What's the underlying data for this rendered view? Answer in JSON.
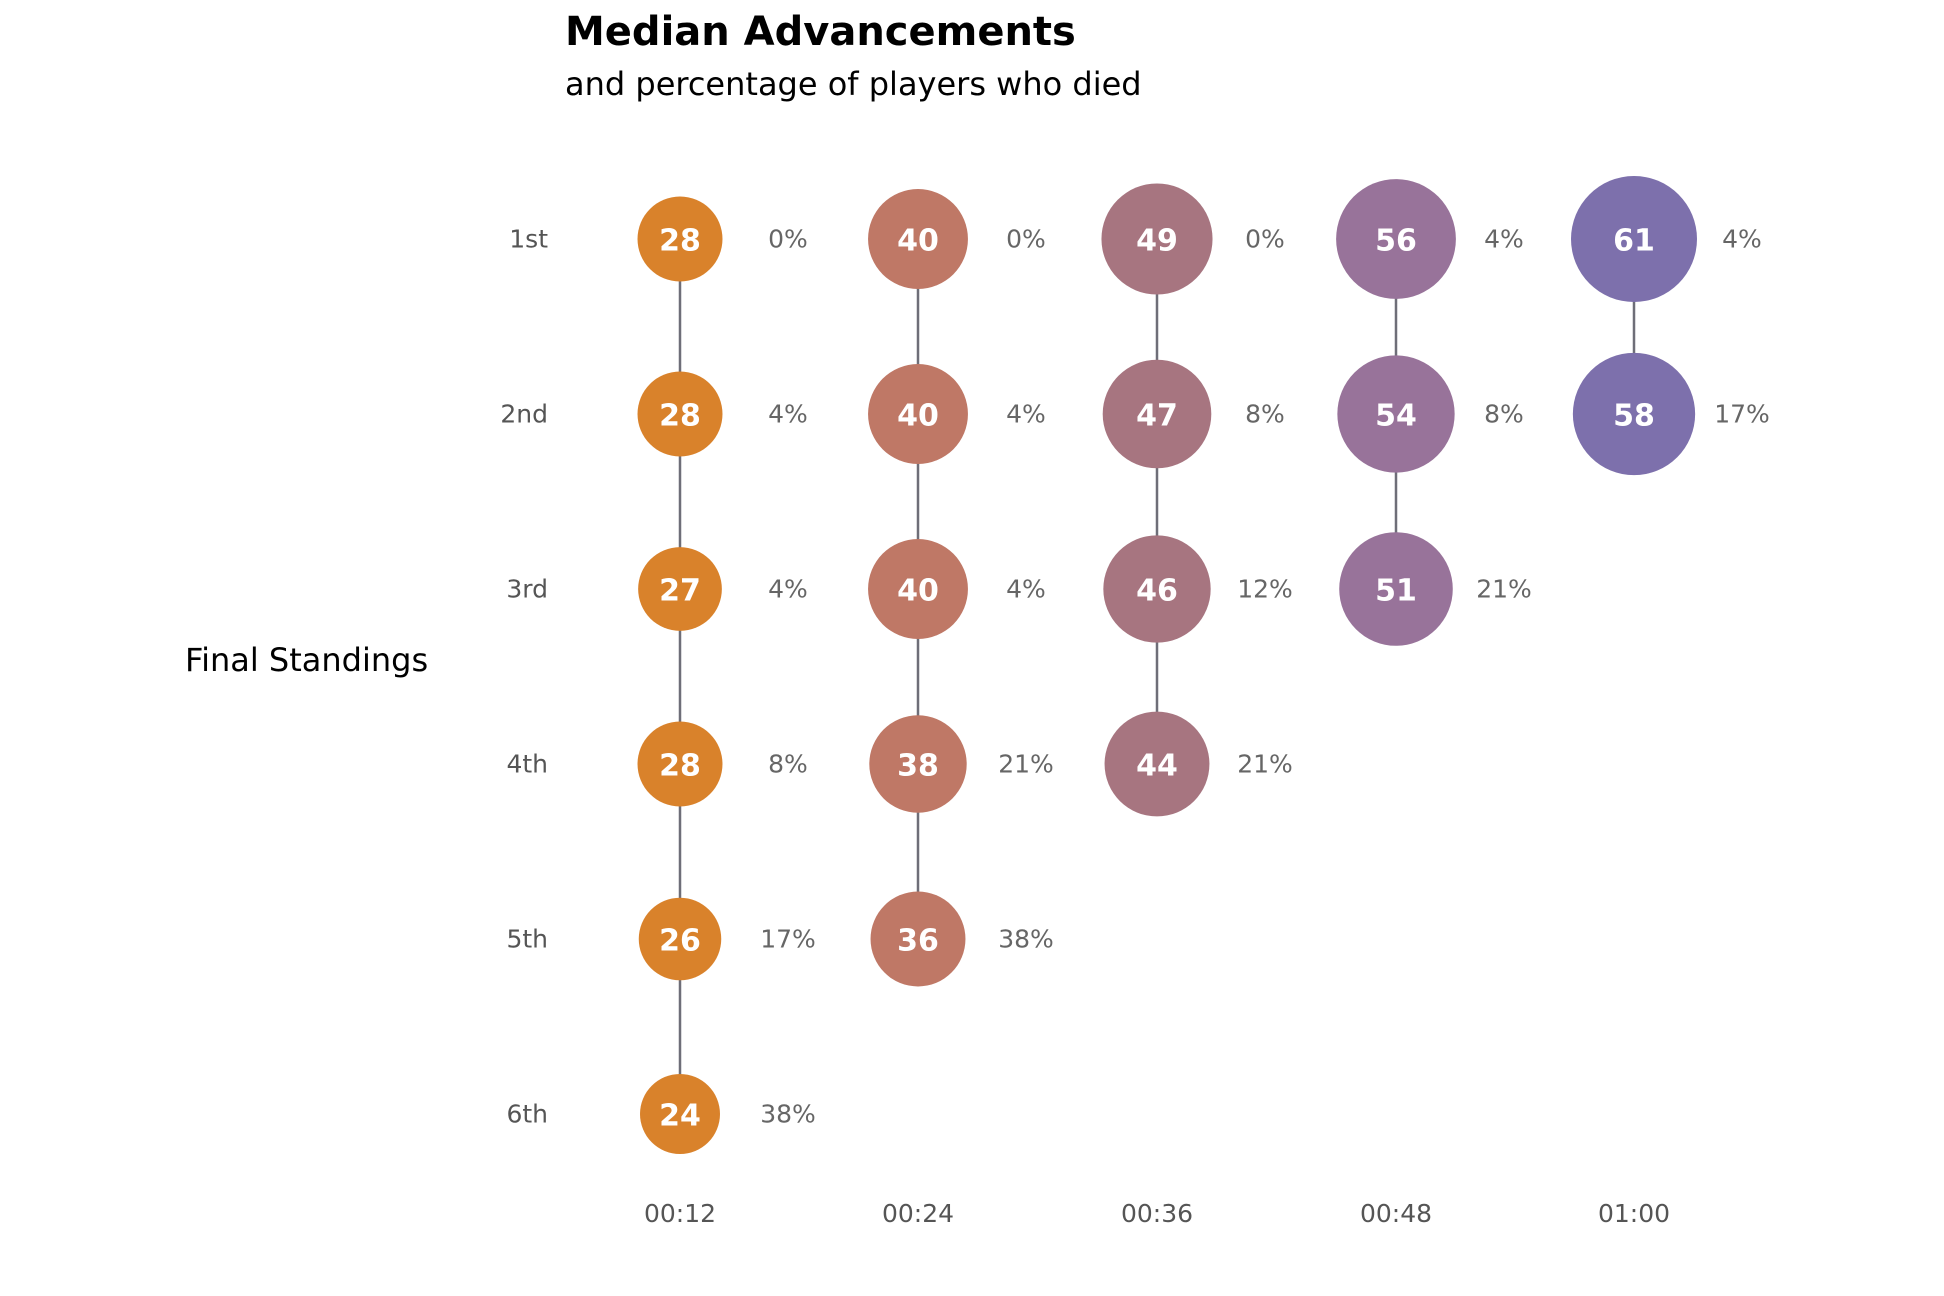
{
  "chart_data": {
    "type": "scatter",
    "title": "Median Advancements",
    "subtitle": "and percentage of players who died",
    "ylabel": "Final Standings",
    "xlabel": "",
    "categories": [
      "00:12",
      "00:24",
      "00:36",
      "00:48",
      "01:00"
    ],
    "ranks": [
      "1st",
      "2nd",
      "3rd",
      "4th",
      "5th",
      "6th"
    ],
    "columns": [
      {
        "time": "00:12",
        "color": "#d9822b",
        "points": [
          {
            "rank": "1st",
            "value": 28,
            "died_pct": "0%"
          },
          {
            "rank": "2nd",
            "value": 28,
            "died_pct": "4%"
          },
          {
            "rank": "3rd",
            "value": 27,
            "died_pct": "4%"
          },
          {
            "rank": "4th",
            "value": 28,
            "died_pct": "8%"
          },
          {
            "rank": "5th",
            "value": 26,
            "died_pct": "17%"
          },
          {
            "rank": "6th",
            "value": 24,
            "died_pct": "38%"
          }
        ]
      },
      {
        "time": "00:24",
        "color": "#bf7866",
        "points": [
          {
            "rank": "1st",
            "value": 40,
            "died_pct": "0%"
          },
          {
            "rank": "2nd",
            "value": 40,
            "died_pct": "4%"
          },
          {
            "rank": "3rd",
            "value": 40,
            "died_pct": "4%"
          },
          {
            "rank": "4th",
            "value": 38,
            "died_pct": "21%"
          },
          {
            "rank": "5th",
            "value": 36,
            "died_pct": "38%"
          }
        ]
      },
      {
        "time": "00:36",
        "color": "#a77580",
        "points": [
          {
            "rank": "1st",
            "value": 49,
            "died_pct": "0%"
          },
          {
            "rank": "2nd",
            "value": 47,
            "died_pct": "8%"
          },
          {
            "rank": "3rd",
            "value": 46,
            "died_pct": "12%"
          },
          {
            "rank": "4th",
            "value": 44,
            "died_pct": "21%"
          }
        ]
      },
      {
        "time": "00:48",
        "color": "#98739a",
        "points": [
          {
            "rank": "1st",
            "value": 56,
            "died_pct": "4%"
          },
          {
            "rank": "2nd",
            "value": 54,
            "died_pct": "8%"
          },
          {
            "rank": "3rd",
            "value": 51,
            "died_pct": "21%"
          }
        ]
      },
      {
        "time": "01:00",
        "color": "#7d70ac",
        "points": [
          {
            "rank": "1st",
            "value": 61,
            "died_pct": "4%"
          },
          {
            "rank": "2nd",
            "value": 58,
            "died_pct": "17%"
          }
        ]
      }
    ],
    "grid": false,
    "legend": "none"
  }
}
